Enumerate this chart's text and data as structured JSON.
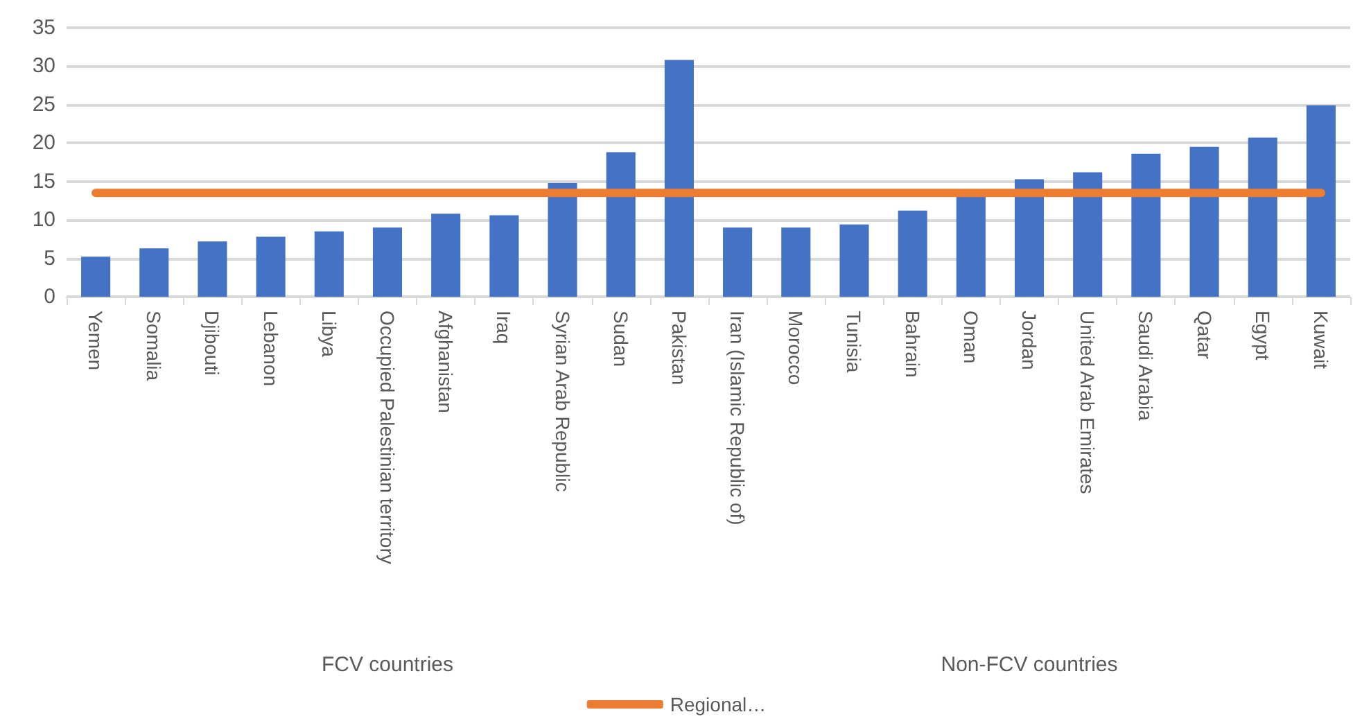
{
  "chart_data": {
    "type": "bar",
    "categories": [
      "Yemen",
      "Somalia",
      "Djibouti",
      "Lebanon",
      "Libya",
      "Occupied Palestinian territory",
      "Afghanistan",
      "Iraq",
      "Syrian Arab Republic",
      "Sudan",
      "Pakistan",
      "Iran (Islamic Republic of)",
      "Morocco",
      "Tunisia",
      "Bahrain",
      "Oman",
      "Jordan",
      "United Arab Emirates",
      "Saudi Arabia",
      "Qatar",
      "Egypt",
      "Kuwait"
    ],
    "series": [
      {
        "color": "#4472c4",
        "values": [
          5.2,
          6.3,
          7.2,
          7.8,
          8.5,
          9.0,
          10.8,
          10.6,
          14.8,
          18.8,
          30.8,
          9.0,
          9.0,
          9.4,
          11.2,
          13.4,
          15.3,
          16.2,
          18.6,
          19.5,
          20.7,
          24.9
        ]
      },
      {
        "type": "line",
        "name": "Regional…",
        "color": "#ed7d31",
        "values": [
          13.5,
          13.5,
          13.5,
          13.5,
          13.5,
          13.5,
          13.5,
          13.5,
          13.5,
          13.5,
          13.5,
          13.5,
          13.5,
          13.5,
          13.5,
          13.5,
          13.5,
          13.5,
          13.5,
          13.5,
          13.5,
          13.5
        ]
      }
    ],
    "annotations": [
      "FCV countries",
      "Non-FCV countries"
    ],
    "ylim": [
      0,
      35
    ],
    "yticks": [
      0,
      5,
      10,
      15,
      20,
      25,
      30,
      35
    ],
    "grid": "y",
    "legend": "bottom",
    "marker": "none",
    "line_style": "solid"
  }
}
